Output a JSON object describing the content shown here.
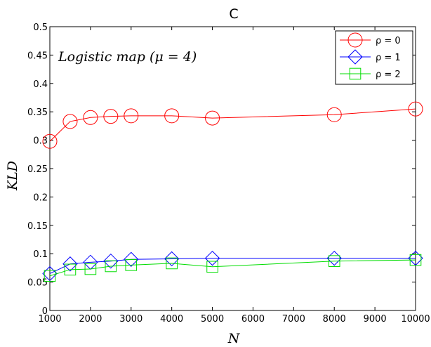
{
  "chart_data": {
    "type": "line",
    "title": "C",
    "annotation": "Logistic map (μ = 4)",
    "xlabel": "N",
    "ylabel": "KLD",
    "xlim": [
      1000,
      10000
    ],
    "ylim": [
      0,
      0.5
    ],
    "x_ticks": [
      "1000",
      "2000",
      "3000",
      "4000",
      "5000",
      "6000",
      "7000",
      "8000",
      "9000",
      "10000"
    ],
    "y_ticks": [
      "0",
      "0.05",
      "0.1",
      "0.15",
      "0.2",
      "0.25",
      "0.3",
      "0.35",
      "0.4",
      "0.45",
      "0.5"
    ],
    "x": [
      1000,
      1500,
      2000,
      2500,
      3000,
      4000,
      5000,
      8000,
      10000
    ],
    "legend_position": "top-right",
    "grid": false,
    "series": [
      {
        "name": "ρ = 0",
        "color": "#ff0000",
        "marker": "circle",
        "values": [
          0.298,
          0.333,
          0.34,
          0.342,
          0.343,
          0.343,
          0.339,
          0.345,
          0.355
        ]
      },
      {
        "name": "ρ = 1",
        "color": "#0000ff",
        "marker": "diamond",
        "values": [
          0.065,
          0.082,
          0.085,
          0.087,
          0.09,
          0.091,
          0.092,
          0.092,
          0.092
        ]
      },
      {
        "name": "ρ = 2",
        "color": "#00dd00",
        "marker": "square",
        "values": [
          0.061,
          0.072,
          0.073,
          0.078,
          0.08,
          0.083,
          0.077,
          0.087,
          0.089
        ]
      }
    ]
  }
}
